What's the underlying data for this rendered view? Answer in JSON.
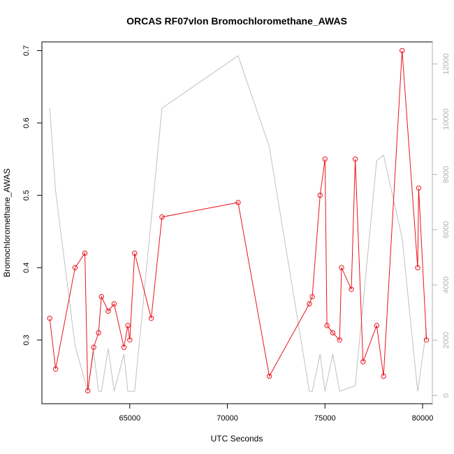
{
  "chart_data": {
    "type": "line",
    "title": "ORCAS RF07vlon Bromochloromethane_AWAS",
    "xlabel": "UTC Seconds",
    "ylabel": "Bromochloromethane_AWAS",
    "xlim": [
      60500,
      80500
    ],
    "ylim": [
      0.212,
      0.712
    ],
    "y2lim": [
      -300,
      12800
    ],
    "xticks": [
      65000,
      70000,
      75000,
      80000
    ],
    "xtick_labels": [
      "65000",
      "70000",
      "75000",
      "80000"
    ],
    "yticks": [
      0.3,
      0.4,
      0.5,
      0.6,
      0.7
    ],
    "ytick_labels": [
      "0.3",
      "0.4",
      "0.5",
      "0.6",
      "0.7"
    ],
    "y2ticks": [
      0,
      2000,
      4000,
      6000,
      8000,
      10000,
      12000
    ],
    "y2tick_labels": [
      "0",
      "2000",
      "4000",
      "6000",
      "8000",
      "10000",
      "12000"
    ],
    "grid": false,
    "series": [
      {
        "color": "#e8141c",
        "marker": "open-circle",
        "axis": "left",
        "x": [
          60900,
          61200,
          62200,
          62700,
          62850,
          63150,
          63400,
          63550,
          63900,
          64200,
          64700,
          64900,
          65000,
          65250,
          66100,
          66650,
          70550,
          72150,
          74200,
          74350,
          74750,
          75000,
          75100,
          75400,
          75750,
          75850,
          76350,
          76550,
          76950,
          77650,
          78000,
          78950,
          79750,
          79800,
          80200
        ],
        "y": [
          0.33,
          0.26,
          0.4,
          0.42,
          0.23,
          0.29,
          0.31,
          0.36,
          0.34,
          0.35,
          0.29,
          0.32,
          0.3,
          0.42,
          0.33,
          0.47,
          0.49,
          0.25,
          0.35,
          0.36,
          0.5,
          0.55,
          0.32,
          0.31,
          0.3,
          0.4,
          0.37,
          0.55,
          0.27,
          0.32,
          0.25,
          0.7,
          0.4,
          0.51,
          0.3
        ]
      },
      {
        "color": "#c0c0c0",
        "marker": "none",
        "axis": "right",
        "x": [
          60900,
          61200,
          62200,
          62850,
          63150,
          63400,
          63550,
          63900,
          64200,
          64700,
          64900,
          65250,
          66650,
          70550,
          72150,
          74200,
          74350,
          74750,
          75000,
          75400,
          75750,
          76550,
          77650,
          78000,
          78950,
          79750,
          80200
        ],
        "y": [
          10400,
          7400,
          1800,
          150,
          1600,
          150,
          150,
          1700,
          150,
          1500,
          150,
          150,
          10400,
          12300,
          9000,
          150,
          150,
          1500,
          150,
          1500,
          150,
          350,
          8500,
          8700,
          5700,
          150,
          2400
        ]
      }
    ]
  }
}
